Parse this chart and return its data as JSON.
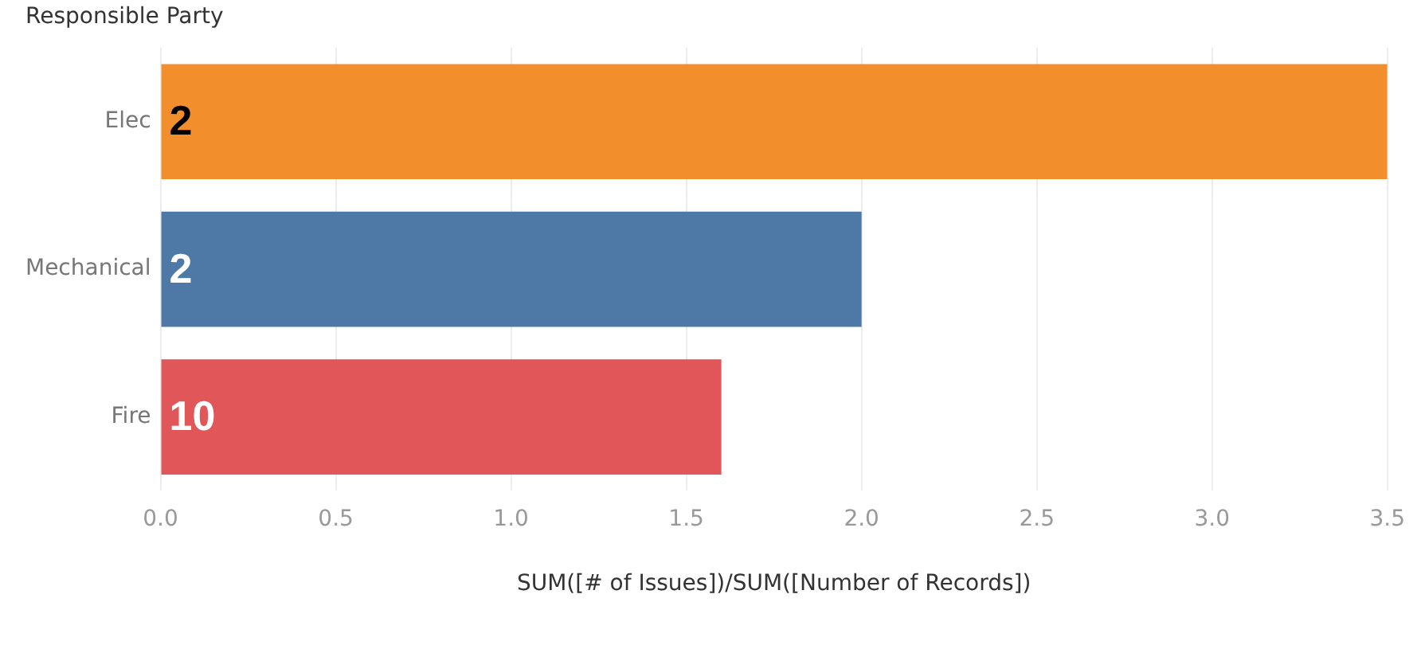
{
  "chart_data": {
    "type": "bar",
    "orientation": "horizontal",
    "ylabel": "Responsible Party",
    "xlabel": "SUM([# of Issues])/SUM([Number of Records])",
    "categories": [
      "Elec",
      "Mechanical",
      "Fire"
    ],
    "values": [
      3.5,
      2.0,
      1.6
    ],
    "colors": [
      "#f28e2b",
      "#4e79a7",
      "#e15759"
    ],
    "annotations": [
      {
        "text": "2",
        "y": "Elec"
      },
      {
        "text": "2",
        "y": "Mechanical"
      },
      {
        "text": "10",
        "y": "Fire"
      }
    ],
    "xlim": [
      0,
      3.5
    ],
    "xticks": [
      {
        "value": 0,
        "label": "0.0"
      },
      {
        "value": 0.5,
        "label": "0.5"
      },
      {
        "value": 1,
        "label": "1.0"
      },
      {
        "value": 1.5,
        "label": "1.5"
      },
      {
        "value": 2,
        "label": "2.0"
      },
      {
        "value": 2.5,
        "label": "2.5"
      },
      {
        "value": 3,
        "label": "3.0"
      },
      {
        "value": 3.5,
        "label": "3.5"
      }
    ],
    "grid": "x",
    "legend": false
  }
}
